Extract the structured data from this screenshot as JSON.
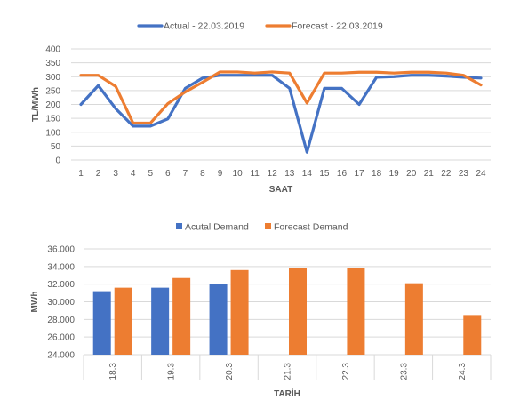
{
  "chart_data": [
    {
      "type": "line",
      "x": [
        1,
        2,
        3,
        4,
        5,
        6,
        7,
        8,
        9,
        10,
        11,
        12,
        13,
        14,
        15,
        16,
        17,
        18,
        19,
        20,
        21,
        22,
        23,
        24
      ],
      "series": [
        {
          "name": "Actual - 22.03.2019",
          "color": "#4472C4",
          "values": [
            200,
            268,
            185,
            122,
            122,
            148,
            258,
            295,
            305,
            305,
            305,
            305,
            258,
            28,
            258,
            258,
            200,
            298,
            300,
            305,
            305,
            302,
            298,
            295
          ]
        },
        {
          "name": "Forecast - 22.03.2019",
          "color": "#ED7D31",
          "values": [
            305,
            305,
            265,
            133,
            133,
            203,
            245,
            280,
            317,
            317,
            313,
            317,
            313,
            205,
            313,
            313,
            316,
            316,
            313,
            316,
            316,
            313,
            305,
            270
          ]
        }
      ],
      "xlabel": "SAAT",
      "ylabel": "TL/MWh",
      "ylim": [
        0,
        400
      ],
      "yticks": [
        0,
        50,
        100,
        150,
        200,
        250,
        300,
        350,
        400
      ],
      "grid": true,
      "legend_position": "top"
    },
    {
      "type": "bar",
      "categories": [
        "18.3",
        "19.3",
        "20.3",
        "21.3",
        "22.3",
        "23.3",
        "24.3"
      ],
      "series": [
        {
          "name": "Acutal Demand",
          "color": "#4472C4",
          "values": [
            31200,
            31600,
            32000,
            null,
            null,
            null,
            null
          ]
        },
        {
          "name": "Forecast Demand",
          "color": "#ED7D31",
          "values": [
            31600,
            32700,
            33600,
            33800,
            33800,
            32100,
            28500
          ]
        }
      ],
      "xlabel": "TARİH",
      "ylabel": "MWh",
      "ylim": [
        24000,
        36000
      ],
      "yticks": [
        "24.000",
        "26.000",
        "28.000",
        "30.000",
        "32.000",
        "34.000",
        "36.000"
      ],
      "grid": true,
      "legend_position": "top"
    }
  ]
}
